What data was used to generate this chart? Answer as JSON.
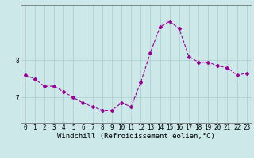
{
  "x": [
    0,
    1,
    2,
    3,
    4,
    5,
    6,
    7,
    8,
    9,
    10,
    11,
    12,
    13,
    14,
    15,
    16,
    17,
    18,
    19,
    20,
    21,
    22,
    23
  ],
  "y": [
    7.6,
    7.5,
    7.3,
    7.3,
    7.15,
    7.0,
    6.85,
    6.75,
    6.65,
    6.65,
    6.85,
    6.75,
    7.4,
    8.2,
    8.9,
    9.05,
    8.85,
    8.1,
    7.95,
    7.95,
    7.85,
    7.8,
    7.6,
    7.65
  ],
  "line_color": "#990099",
  "marker": "D",
  "markersize": 2.0,
  "linewidth": 0.8,
  "bg_color": "#cce8e8",
  "grid_color": "#aacccc",
  "xlabel": "Windchill (Refroidissement éolien,°C)",
  "xlabel_fontsize": 6.5,
  "tick_fontsize": 5.5,
  "yticks": [
    7,
    8
  ],
  "ylim": [
    6.3,
    9.5
  ],
  "xlim": [
    -0.5,
    23.5
  ],
  "title": ""
}
